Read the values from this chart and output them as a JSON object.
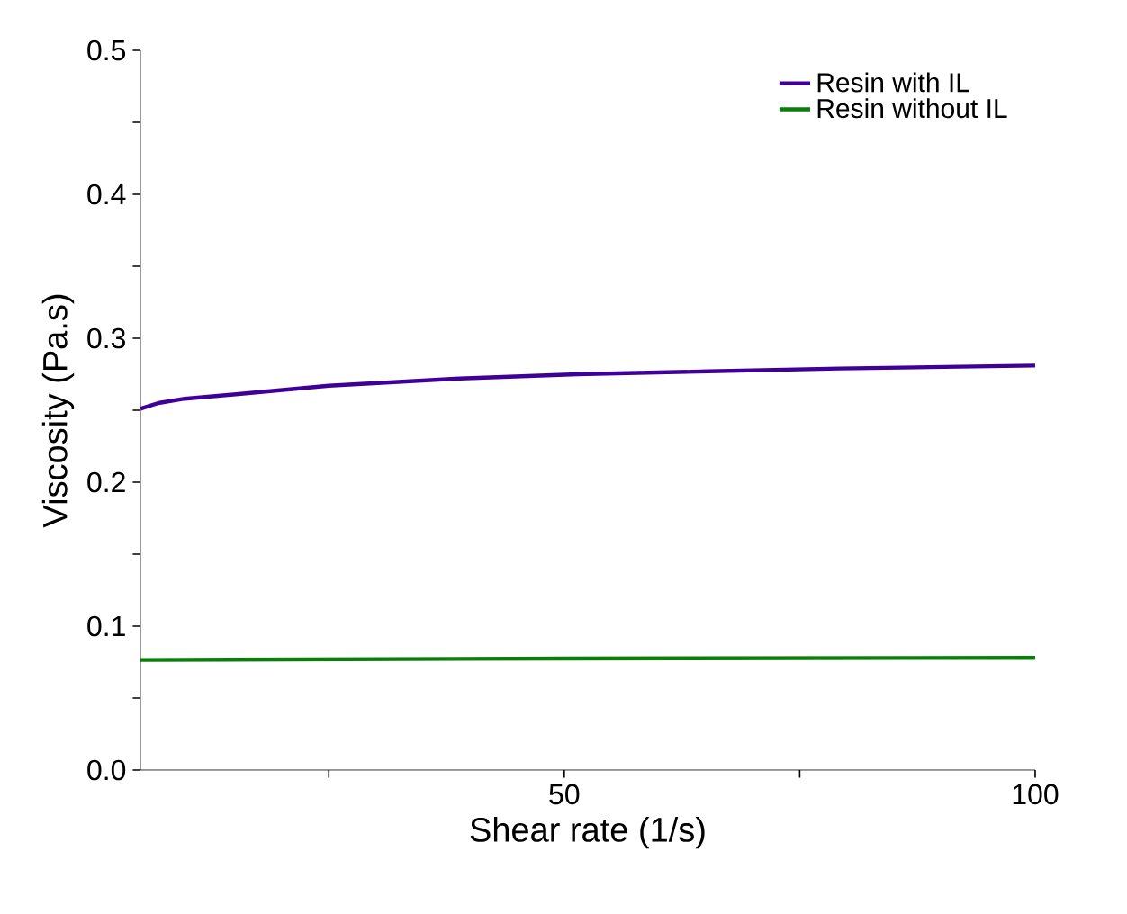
{
  "chart_data": {
    "type": "line",
    "xlabel": "Shear rate (1/s)",
    "ylabel": "Viscosity (Pa.s)",
    "xlim": [
      5,
      100
    ],
    "ylim": [
      0,
      0.5
    ],
    "xticks": [
      {
        "value": 25,
        "label": null
      },
      50,
      {
        "value": 75,
        "label": null
      },
      100
    ],
    "yticks": [
      {
        "value": 0,
        "label": "0.0"
      },
      {
        "value": 0.05,
        "label": null
      },
      0.1,
      {
        "value": 0.15,
        "label": null
      },
      0.2,
      {
        "value": 0.25,
        "label": null
      },
      0.3,
      {
        "value": 0.35,
        "label": null
      },
      0.4,
      {
        "value": 0.45,
        "label": null
      },
      0.5
    ],
    "legend": "top right",
    "grid": false,
    "marker": "none",
    "line_style": "solid",
    "series": [
      {
        "name": "Resin with IL",
        "color": "#3f0099",
        "x": [
          5,
          6.9,
          9.7,
          16.7,
          25,
          38.9,
          51.4,
          65.3,
          79.2,
          100
        ],
        "values": [
          0.251,
          0.255,
          0.258,
          0.262,
          0.267,
          0.272,
          0.275,
          0.277,
          0.279,
          0.281
        ]
      },
      {
        "name": "Resin without IL",
        "color": "#0a7d0a",
        "x": [
          5,
          50,
          100
        ],
        "values": [
          0.0765,
          0.0775,
          0.078
        ]
      }
    ]
  }
}
